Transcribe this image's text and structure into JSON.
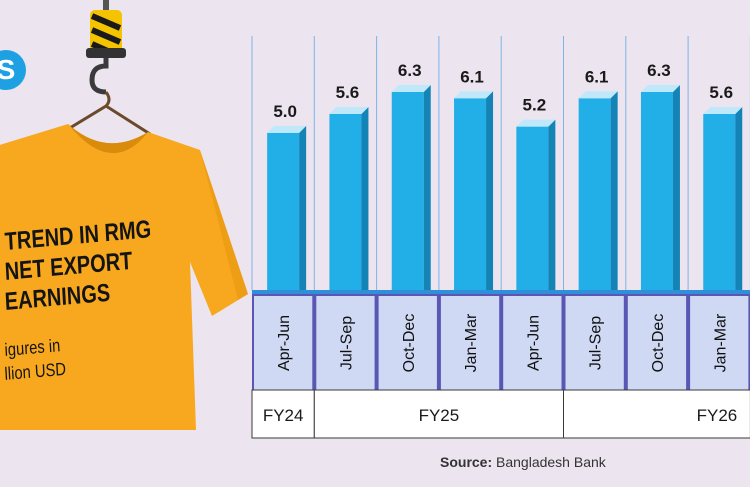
{
  "illustration": {
    "logo_glyph": "S",
    "shirt_title_lines": [
      "TREND IN RMG",
      "NET EXPORT",
      "EARNINGS"
    ],
    "shirt_unit_lines": [
      "igures in",
      "llion USD"
    ],
    "shirt_color": "#f7a81e",
    "icons": [
      "crane-hook-icon",
      "hanger-icon",
      "tshirt-icon"
    ]
  },
  "colors": {
    "bar": "#22aee6",
    "bar_side": "#1483b6",
    "bar_top": "#bfe9fb",
    "axis_band": "#5a56b4",
    "background": "#ece4ef"
  },
  "chart_data": {
    "type": "bar",
    "categories": [
      "Apr-Jun",
      "Jul-Sep",
      "Oct-Dec",
      "Jan-Mar",
      "Apr-Jun",
      "Jul-Sep",
      "Oct-Dec",
      "Jan-Mar"
    ],
    "values": [
      5.0,
      5.6,
      6.3,
      6.1,
      5.2,
      6.1,
      6.3,
      5.6
    ],
    "value_labels": [
      "5.0",
      "5.6",
      "6.3",
      "6.1",
      "5.2",
      "6.1",
      "6.3",
      "5.6"
    ],
    "groups": [
      {
        "label": "FY24",
        "start": 0,
        "end": 0
      },
      {
        "label": "FY25",
        "start": 1,
        "end": 4
      },
      {
        "label": "FY26",
        "start": 5,
        "end": 7
      }
    ],
    "title": "",
    "xlabel": "",
    "ylabel": "",
    "ylim": [
      0,
      6.3
    ],
    "grid": true
  },
  "source": {
    "prefix": "Source:",
    "text": "Bangladesh Bank"
  }
}
